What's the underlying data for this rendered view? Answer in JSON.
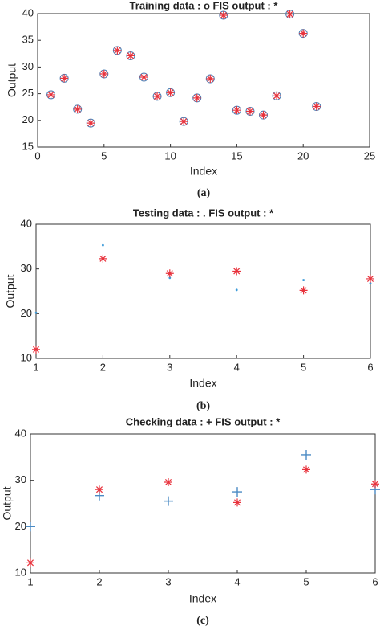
{
  "chart_data": [
    {
      "type": "scatter",
      "title": "Training data : o   FIS output : *",
      "xlabel": "Index",
      "ylabel": "Output",
      "caption": "(a)",
      "x": [
        1,
        2,
        3,
        4,
        5,
        6,
        7,
        8,
        9,
        10,
        11,
        12,
        13,
        14,
        15,
        16,
        17,
        18,
        19,
        20,
        21
      ],
      "xlim": [
        0,
        25
      ],
      "xticks": [
        0,
        5,
        10,
        15,
        20,
        25
      ],
      "ylim": [
        15,
        40
      ],
      "yticks": [
        15,
        20,
        25,
        30,
        35,
        40
      ],
      "series": [
        {
          "marker": "circle",
          "color": "#4a7fb5",
          "values": [
            24.8,
            27.9,
            22.1,
            19.5,
            28.7,
            33.1,
            32.1,
            28.1,
            24.5,
            25.2,
            19.8,
            24.2,
            27.8,
            39.7,
            21.9,
            21.7,
            21.0,
            24.6,
            39.9,
            36.3,
            22.6
          ]
        },
        {
          "marker": "star",
          "color": "#e8323c",
          "values": [
            24.8,
            27.9,
            22.1,
            19.5,
            28.7,
            33.1,
            32.1,
            28.1,
            24.5,
            25.2,
            19.8,
            24.2,
            27.8,
            39.7,
            21.9,
            21.7,
            21.0,
            24.6,
            39.9,
            36.3,
            22.6
          ]
        }
      ]
    },
    {
      "type": "scatter",
      "title": "Testing data : .   FIS output : *",
      "xlabel": "Index",
      "ylabel": "Output",
      "caption": "(b)",
      "x": [
        1,
        2,
        3,
        4,
        5,
        6
      ],
      "xlim": [
        1,
        6
      ],
      "xticks": [
        1,
        2,
        3,
        4,
        5,
        6
      ],
      "ylim": [
        10,
        40
      ],
      "yticks": [
        10,
        20,
        30,
        40
      ],
      "series": [
        {
          "marker": "dot",
          "color": "#3a9ad9",
          "values": [
            20.2,
            35.3,
            28.0,
            25.3,
            27.5,
            26.8
          ]
        },
        {
          "marker": "star",
          "color": "#e8323c",
          "values": [
            12.0,
            32.3,
            29.0,
            29.5,
            25.2,
            27.8
          ]
        }
      ]
    },
    {
      "type": "scatter",
      "title": "Checking data : +   FIS output : *",
      "xlabel": "Index",
      "ylabel": "Output",
      "caption": "(c)",
      "x": [
        1,
        2,
        3,
        4,
        5,
        6
      ],
      "xlim": [
        1,
        6
      ],
      "xticks": [
        1,
        2,
        3,
        4,
        5,
        6
      ],
      "ylim": [
        10,
        40
      ],
      "yticks": [
        10,
        20,
        30,
        40
      ],
      "series": [
        {
          "marker": "plus",
          "color": "#4a8ac4",
          "values": [
            20.0,
            26.7,
            25.5,
            27.5,
            35.5,
            28.0
          ]
        },
        {
          "marker": "star",
          "color": "#e8323c",
          "values": [
            12.2,
            28.0,
            29.6,
            25.2,
            32.3,
            29.2
          ]
        }
      ]
    }
  ]
}
